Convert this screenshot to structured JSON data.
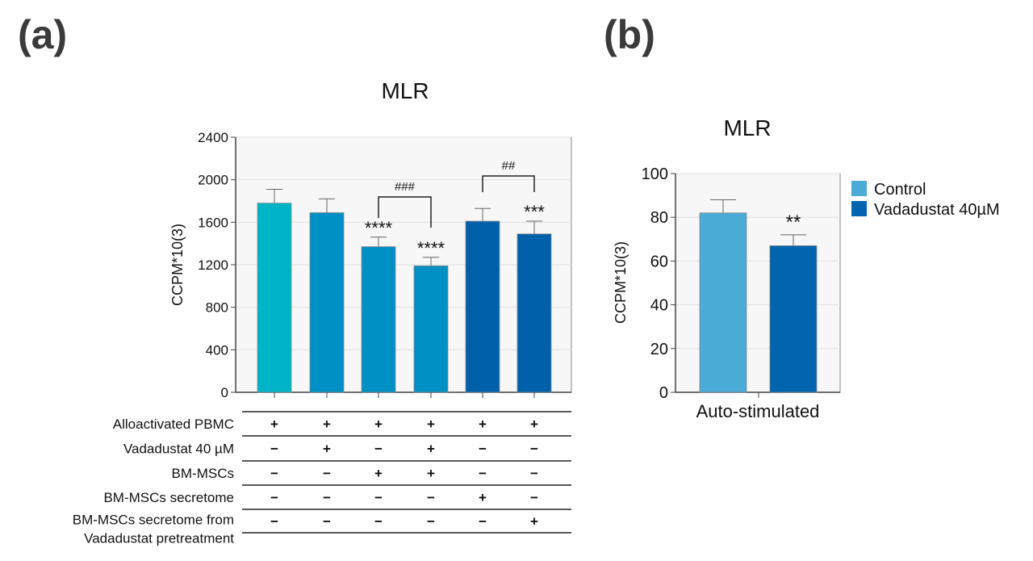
{
  "panel_labels": [
    "(a)",
    "(b)"
  ],
  "chart_data": [
    {
      "type": "bar",
      "panel": "(a)",
      "title": "MLR",
      "ylabel": "CCPM*10(3)",
      "ylim": [
        0,
        2400
      ],
      "yticks": [
        "0",
        "400",
        "800",
        "1200",
        "1600",
        "2000",
        "2400"
      ],
      "grid": true,
      "values": [
        1780,
        1690,
        1370,
        1190,
        1610,
        1490
      ],
      "error_upper": [
        1910,
        1820,
        1460,
        1270,
        1730,
        1610
      ],
      "colors": [
        "#00b4c8",
        "#0090c4",
        "#0090c4",
        "#0090c4",
        "#0060aa",
        "#0060aa"
      ],
      "significance": [
        "",
        "",
        "****",
        "****",
        "",
        "***"
      ],
      "brackets": [
        {
          "from": 3,
          "to": 4,
          "label": "###"
        },
        {
          "from": 5,
          "to": 6,
          "label": "##"
        }
      ],
      "conditions": [
        {
          "label": "Alloactivated PBMC",
          "values": [
            "+",
            "+",
            "+",
            "+",
            "+",
            "+"
          ]
        },
        {
          "label": "Vadadustat 40 µM",
          "values": [
            "−",
            "+",
            "−",
            "+",
            "−",
            "−"
          ]
        },
        {
          "label": "BM-MSCs",
          "values": [
            "−",
            "−",
            "+",
            "+",
            "−",
            "−"
          ]
        },
        {
          "label": "BM-MSCs secretome",
          "values": [
            "−",
            "−",
            "−",
            "−",
            "+",
            "−"
          ]
        },
        {
          "label": "BM-MSCs secretome from",
          "label2": "Vadadustat pretreatment",
          "values": [
            "−",
            "−",
            "−",
            "−",
            "−",
            "+"
          ]
        }
      ]
    },
    {
      "type": "bar",
      "panel": "(b)",
      "title": "MLR",
      "ylabel": "CCPM*10(3)",
      "xlabel": "Auto-stimulated",
      "ylim": [
        0,
        100
      ],
      "yticks": [
        "0",
        "20",
        "40",
        "60",
        "80",
        "100"
      ],
      "grid": true,
      "legend_position": "right",
      "series": [
        {
          "name": "Control",
          "values": [
            82
          ],
          "error_upper": [
            88
          ],
          "color": "#4aabd6",
          "significance": ""
        },
        {
          "name": "Vadadustat 40µM",
          "values": [
            67
          ],
          "error_upper": [
            72
          ],
          "color": "#0064ae",
          "significance": "**"
        }
      ]
    }
  ]
}
